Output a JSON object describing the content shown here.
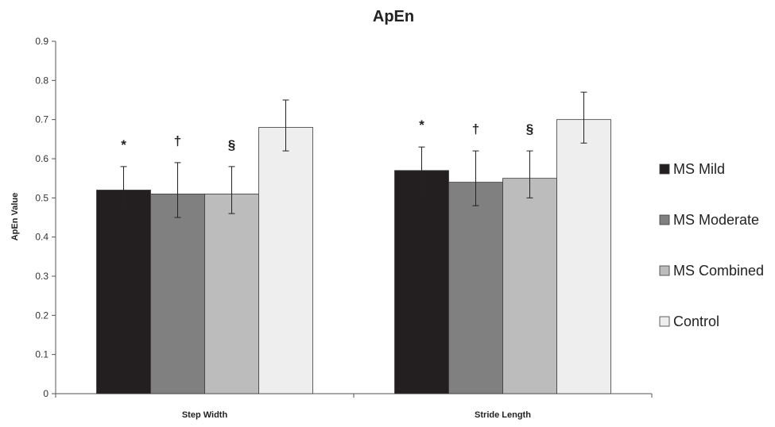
{
  "chart_data": {
    "type": "bar",
    "title": "ApEn",
    "xlabel": "",
    "ylabel": "ApEn Value",
    "ylim": [
      0,
      0.9
    ],
    "yticks": [
      "0",
      "0.1",
      "0.2",
      "0.3",
      "0.4",
      "0.5",
      "0.6",
      "0.7",
      "0.8",
      "0.9"
    ],
    "grid": false,
    "legend_position": "right",
    "categories": [
      "Step Width",
      "Stride Length"
    ],
    "series": [
      {
        "name": "MS Mild",
        "color": "#231f20",
        "values": [
          0.52,
          0.57
        ],
        "error_low": [
          0.48,
          0.51
        ],
        "error_high": [
          0.58,
          0.63
        ],
        "annotation": "*"
      },
      {
        "name": "MS Moderate",
        "color": "#808080",
        "values": [
          0.51,
          0.54
        ],
        "error_low": [
          0.45,
          0.48
        ],
        "error_high": [
          0.59,
          0.62
        ],
        "annotation": "†"
      },
      {
        "name": "MS Combined",
        "color": "#bcbcbc",
        "values": [
          0.51,
          0.55
        ],
        "error_low": [
          0.46,
          0.5
        ],
        "error_high": [
          0.58,
          0.62
        ],
        "annotation": "§"
      },
      {
        "name": "Control",
        "color": "#eeeeee",
        "values": [
          0.68,
          0.7
        ],
        "error_low": [
          0.62,
          0.64
        ],
        "error_high": [
          0.75,
          0.77
        ],
        "annotation": ""
      }
    ]
  }
}
